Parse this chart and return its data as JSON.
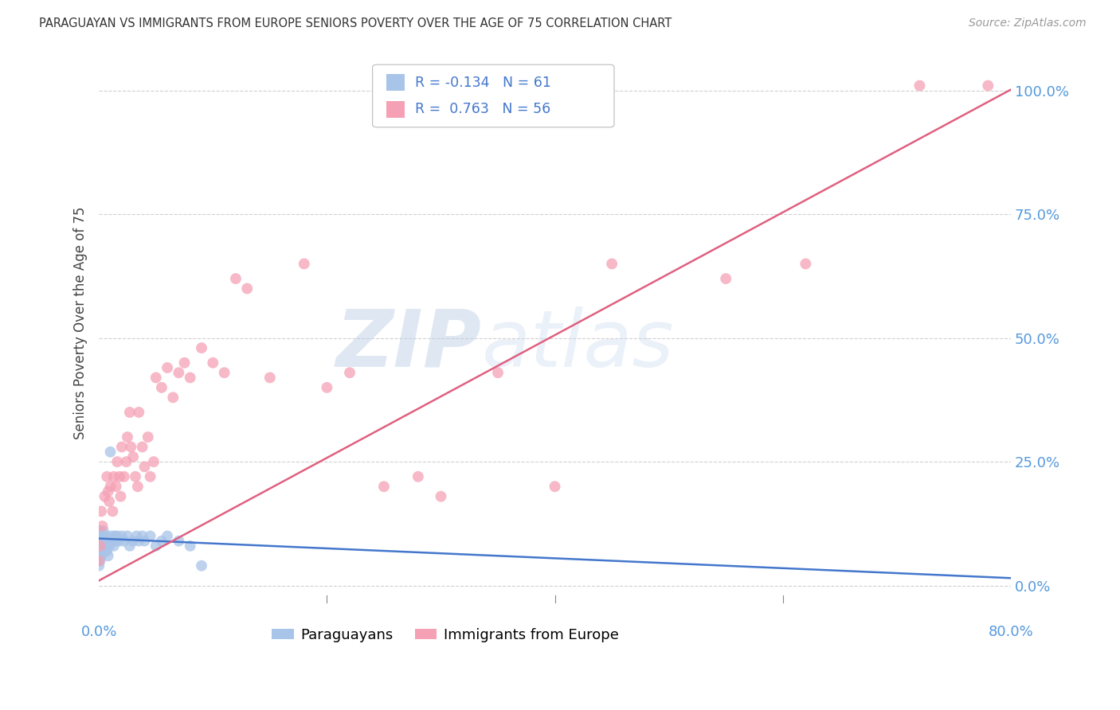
{
  "title": "PARAGUAYAN VS IMMIGRANTS FROM EUROPE SENIORS POVERTY OVER THE AGE OF 75 CORRELATION CHART",
  "source": "Source: ZipAtlas.com",
  "ylabel": "Seniors Poverty Over the Age of 75",
  "background_color": "#ffffff",
  "grid_color": "#d0d0d0",
  "paraguayan_color": "#a8c4e8",
  "europe_color": "#f5a0b5",
  "paraguayan_line_color": "#4477cc",
  "europe_line_color": "#e06080",
  "paraguayan_R": -0.134,
  "paraguayan_N": 61,
  "europe_R": 0.763,
  "europe_N": 56,
  "watermark_zip": "ZIP",
  "watermark_atlas": "atlas",
  "ytick_labels": [
    "0.0%",
    "25.0%",
    "50.0%",
    "75.0%",
    "100.0%"
  ],
  "ytick_values": [
    0.0,
    0.25,
    0.5,
    0.75,
    1.0
  ],
  "xlim": [
    0.0,
    0.8
  ],
  "ylim": [
    -0.02,
    1.08
  ],
  "par_x": [
    0.0,
    0.0,
    0.0,
    0.0,
    0.0,
    0.0,
    0.0,
    0.0,
    0.001,
    0.001,
    0.001,
    0.001,
    0.001,
    0.001,
    0.001,
    0.002,
    0.002,
    0.002,
    0.002,
    0.002,
    0.003,
    0.003,
    0.003,
    0.003,
    0.004,
    0.004,
    0.004,
    0.005,
    0.005,
    0.006,
    0.006,
    0.007,
    0.007,
    0.008,
    0.008,
    0.009,
    0.01,
    0.01,
    0.011,
    0.012,
    0.013,
    0.014,
    0.015,
    0.016,
    0.018,
    0.02,
    0.022,
    0.025,
    0.027,
    0.03,
    0.033,
    0.035,
    0.038,
    0.04,
    0.045,
    0.05,
    0.055,
    0.06,
    0.07,
    0.08,
    0.09
  ],
  "par_y": [
    0.04,
    0.05,
    0.06,
    0.07,
    0.08,
    0.09,
    0.1,
    0.11,
    0.05,
    0.06,
    0.07,
    0.08,
    0.09,
    0.1,
    0.11,
    0.06,
    0.07,
    0.08,
    0.09,
    0.1,
    0.07,
    0.08,
    0.09,
    0.1,
    0.08,
    0.09,
    0.11,
    0.07,
    0.09,
    0.08,
    0.1,
    0.07,
    0.09,
    0.06,
    0.09,
    0.08,
    0.27,
    0.09,
    0.1,
    0.09,
    0.08,
    0.1,
    0.09,
    0.1,
    0.09,
    0.1,
    0.09,
    0.1,
    0.08,
    0.09,
    0.1,
    0.09,
    0.1,
    0.09,
    0.1,
    0.08,
    0.09,
    0.1,
    0.09,
    0.08,
    0.04
  ],
  "eur_x": [
    0.0,
    0.001,
    0.002,
    0.003,
    0.005,
    0.007,
    0.008,
    0.009,
    0.01,
    0.012,
    0.013,
    0.015,
    0.016,
    0.018,
    0.019,
    0.02,
    0.022,
    0.024,
    0.025,
    0.027,
    0.028,
    0.03,
    0.032,
    0.034,
    0.035,
    0.038,
    0.04,
    0.043,
    0.045,
    0.048,
    0.05,
    0.055,
    0.06,
    0.065,
    0.07,
    0.075,
    0.08,
    0.09,
    0.1,
    0.11,
    0.12,
    0.13,
    0.15,
    0.18,
    0.2,
    0.22,
    0.25,
    0.28,
    0.3,
    0.35,
    0.4,
    0.45,
    0.55,
    0.62,
    0.72,
    0.78
  ],
  "eur_y": [
    0.05,
    0.08,
    0.15,
    0.12,
    0.18,
    0.22,
    0.19,
    0.17,
    0.2,
    0.15,
    0.22,
    0.2,
    0.25,
    0.22,
    0.18,
    0.28,
    0.22,
    0.25,
    0.3,
    0.35,
    0.28,
    0.26,
    0.22,
    0.2,
    0.35,
    0.28,
    0.24,
    0.3,
    0.22,
    0.25,
    0.42,
    0.4,
    0.44,
    0.38,
    0.43,
    0.45,
    0.42,
    0.48,
    0.45,
    0.43,
    0.62,
    0.6,
    0.42,
    0.65,
    0.4,
    0.43,
    0.2,
    0.22,
    0.18,
    0.43,
    0.2,
    0.65,
    0.62,
    0.65,
    1.01,
    1.01
  ]
}
